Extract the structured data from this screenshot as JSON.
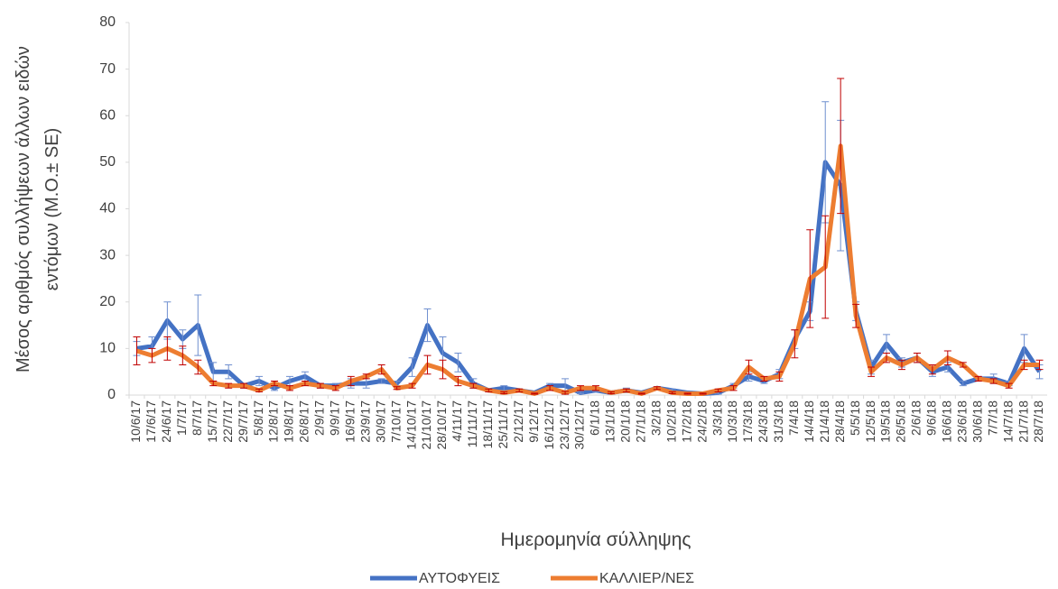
{
  "chart_data": {
    "type": "line",
    "ylabel": [
      "Μέσος αριθμός συλλήψεων άλλων ειδών",
      "εντόμων (Μ.Ο.± SE)"
    ],
    "xlabel": "Ημερομηνία σύλληψης",
    "categories": [
      "10/6/17",
      "17/6/17",
      "24/6/17",
      "1/7/17",
      "8/7/17",
      "15/7/17",
      "22/7/17",
      "29/7/17",
      "5/8/17",
      "12/8/17",
      "19/8/17",
      "26/8/17",
      "2/9/17",
      "9/9/17",
      "16/9/17",
      "23/9/17",
      "30/9/17",
      "7/10/17",
      "14/10/17",
      "21/10/17",
      "28/10/17",
      "4/11/17",
      "11/11/17",
      "18/11/17",
      "25/11/17",
      "2/12/17",
      "9/12/17",
      "16/12/17",
      "23/12/17",
      "30/12/17",
      "6/1/18",
      "13/1/18",
      "20/1/18",
      "27/1/18",
      "3/2/18",
      "10/2/18",
      "17/2/18",
      "24/2/18",
      "3/3/18",
      "10/3/18",
      "17/3/18",
      "24/3/18",
      "31/3/18",
      "7/4/18",
      "14/4/18",
      "21/4/18",
      "28/4/18",
      "5/5/18",
      "12/5/18",
      "19/5/18",
      "26/5/18",
      "2/6/18",
      "9/6/18",
      "16/6/18",
      "23/6/18",
      "30/6/18",
      "7/7/18",
      "14/7/18",
      "21/7/18",
      "28/7/18"
    ],
    "series": [
      {
        "name": "ΑΥΤΟΦΥΕΙΣ",
        "color": "#4472c4",
        "error_color": "#6f8fcf",
        "values": [
          10,
          10.5,
          16,
          12,
          15,
          5,
          5,
          2,
          3,
          1.5,
          3,
          4,
          2,
          2,
          2.5,
          2.5,
          3,
          2.5,
          6,
          15,
          9,
          7,
          2.5,
          1,
          1.5,
          1,
          0.5,
          2,
          2,
          0.5,
          1,
          0.5,
          1,
          0.5,
          1.5,
          1,
          0.5,
          0.3,
          0.5,
          2,
          4,
          3,
          4.5,
          12,
          18,
          50,
          45,
          18,
          6,
          11,
          7,
          8,
          5,
          6,
          2.5,
          3.5,
          3.5,
          2.5,
          10,
          5
        ],
        "errors": [
          1.5,
          2,
          4,
          2,
          6.5,
          2,
          1.5,
          0.5,
          1,
          0.5,
          1,
          1,
          0.5,
          0.5,
          1,
          1,
          0.5,
          0.5,
          2,
          3.5,
          3.5,
          2,
          1,
          0.3,
          0.5,
          0.3,
          0.2,
          0.5,
          1.5,
          0.2,
          0.3,
          0.2,
          0.5,
          0.2,
          0.3,
          0.3,
          0.2,
          0.1,
          0.3,
          0.5,
          1,
          0.5,
          1,
          2,
          2,
          13,
          14,
          2,
          1.5,
          2,
          1,
          1,
          1,
          1,
          0.5,
          0.5,
          1,
          0.5,
          3,
          1.5
        ]
      },
      {
        "name": "ΚΑΛΛΙΕΡ/ΝΕΣ",
        "color": "#ed7d31",
        "error_color": "#c00000",
        "values": [
          9.5,
          8.5,
          10,
          8.5,
          6,
          2.5,
          2,
          2,
          1,
          2.5,
          1.5,
          2.5,
          2,
          1.5,
          3,
          4,
          5.5,
          1.5,
          2,
          6.5,
          5.5,
          3,
          2,
          1,
          0.5,
          1,
          0.3,
          1.5,
          0.5,
          1.5,
          1.5,
          0.5,
          1,
          0.3,
          1.5,
          0.5,
          0.3,
          0.3,
          1,
          1.5,
          6,
          3.5,
          4,
          11,
          25,
          27.5,
          53.5,
          17,
          5,
          8,
          6.5,
          8,
          5.5,
          8,
          6.5,
          3.5,
          3,
          2,
          6.5,
          6.5
        ],
        "errors": [
          3,
          1.5,
          2.5,
          2,
          1.5,
          0.5,
          0.5,
          0.5,
          0.3,
          0.5,
          0.5,
          0.5,
          0.5,
          0.5,
          1,
          0.5,
          1,
          0.3,
          0.5,
          2,
          2,
          1,
          0.5,
          0.3,
          0.2,
          0.3,
          0.1,
          0.5,
          0.3,
          0.5,
          0.5,
          0.2,
          0.3,
          0.1,
          0.3,
          0.2,
          0.1,
          0.1,
          0.3,
          0.5,
          1.5,
          0.5,
          1,
          3,
          10.5,
          11,
          14.5,
          2.5,
          1,
          1,
          1,
          1,
          1,
          1.5,
          0.5,
          0.5,
          0.5,
          0.5,
          1,
          1
        ]
      }
    ],
    "ylim": [
      0,
      80
    ],
    "yticks": [
      0,
      10,
      20,
      30,
      40,
      50,
      60,
      70,
      80
    ],
    "legend": "bottom"
  }
}
